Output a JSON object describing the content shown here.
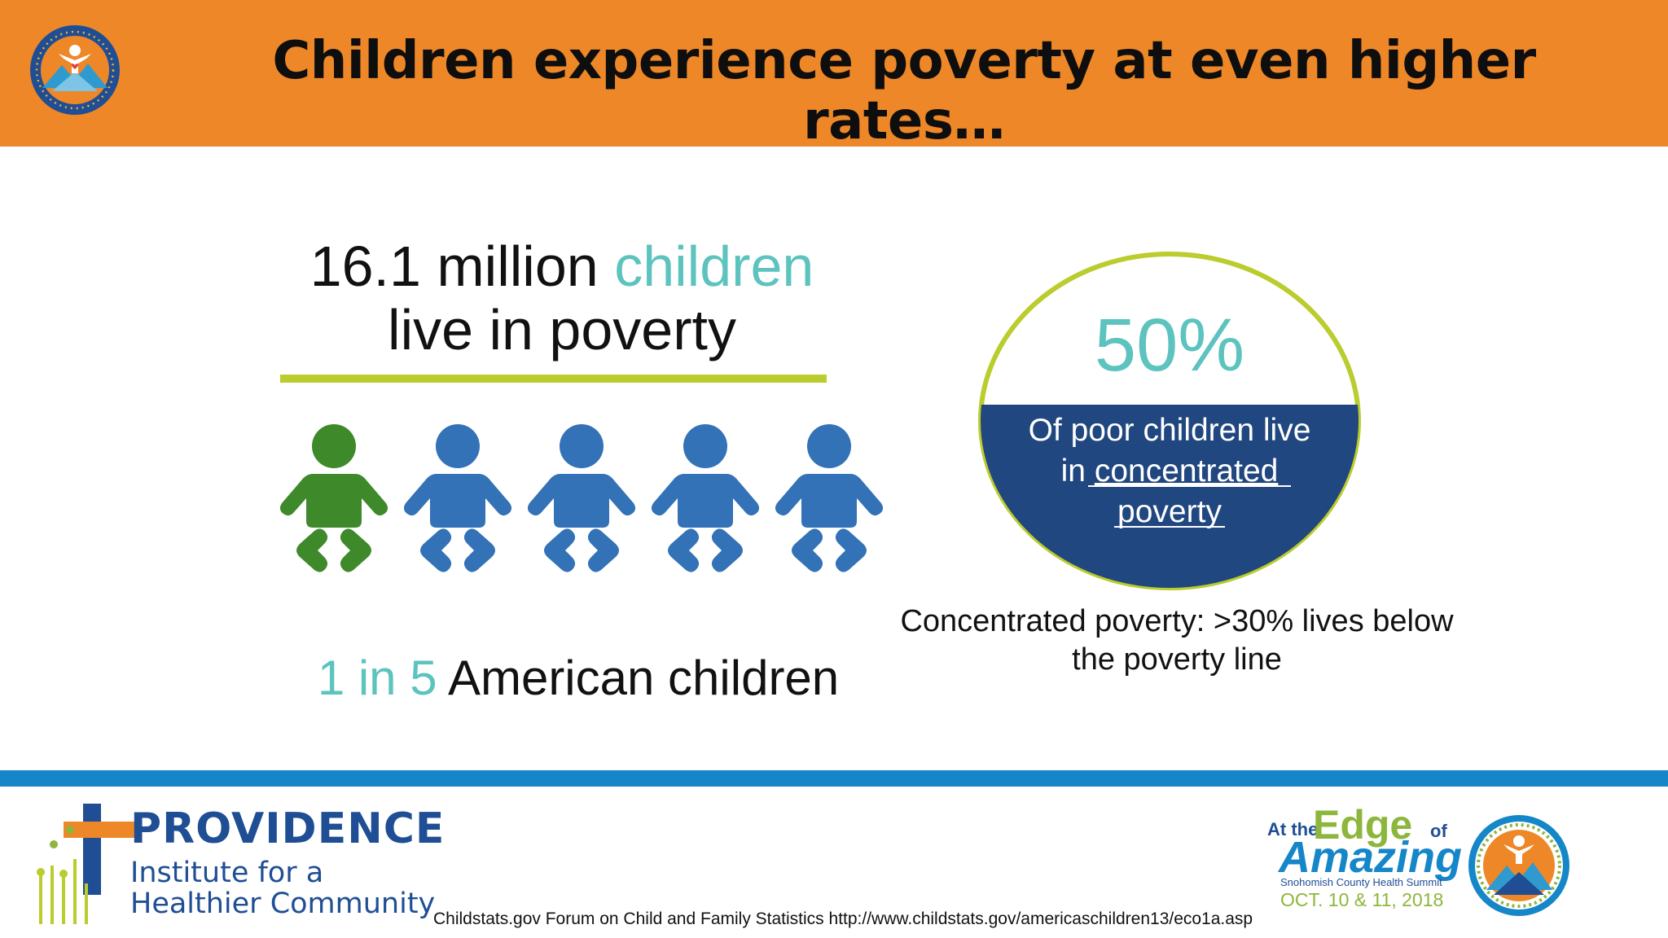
{
  "header": {
    "title": "Children experience poverty at even higher rates…",
    "background_color": "#EE8728",
    "logo_icon": "summit-emblem-icon"
  },
  "left_stat": {
    "number_text": "16.1 million",
    "teal_word": "children",
    "line2": "live in poverty",
    "highlight_color": "#5CC3BE",
    "rule_color": "#BACC2E"
  },
  "babies": {
    "icon": "baby-icon",
    "count": 5,
    "highlighted_count": 1,
    "highlight_color": "#3E8A2A",
    "base_color": "#3372B6"
  },
  "ratio": {
    "teal_part": "1 in 5",
    "rest": "American children"
  },
  "circle": {
    "percent": "50%",
    "line1": "Of poor children live",
    "line2_prefix": "in ",
    "line2_link": "concentrated",
    "line3_link": "poverty",
    "fill_color": "#20477F",
    "ring_color": "#BACC2E"
  },
  "note": {
    "line1": "Concentrated poverty: >30% lives below",
    "line2": "the poverty line"
  },
  "footer": {
    "band_color": "#1586C8",
    "provider_name": "PROVIDENCE",
    "provider_sub1": "Institute for a",
    "provider_sub2": "Healthier Community",
    "citation": "Childstats.gov Forum on Child and Family Statistics  http://www.childstats.gov/americaschildren13/eco1a.asp",
    "event_at": "At the",
    "event_edge": "Edge",
    "event_of": "of",
    "event_amazing": "Amazing",
    "event_summit": "Snohomish County Health Summit",
    "event_date": "OCT. 10 & 11, 2018"
  }
}
